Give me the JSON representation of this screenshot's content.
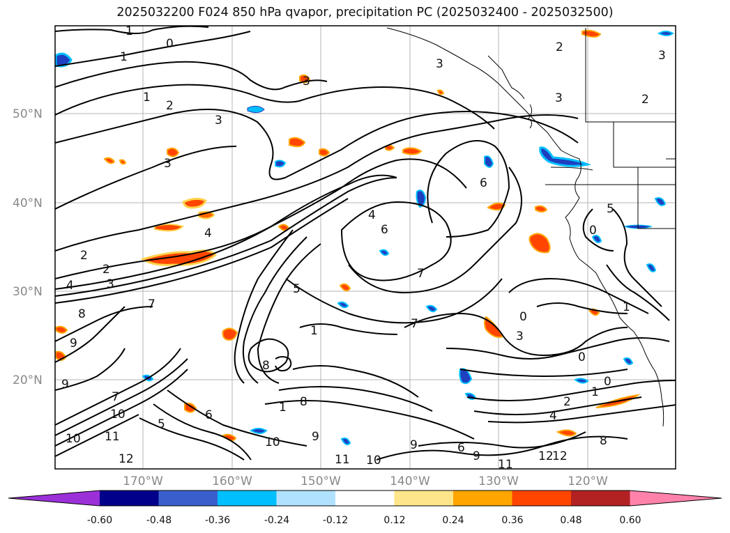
{
  "title": "2025032200 F024 850 hPa qvapor, precipitation PC (2025032400 - 2025032500)",
  "map": {
    "lat_labels": [
      "50°N",
      "40°N",
      "30°N",
      "20°N"
    ],
    "lon_labels": [
      "170°W",
      "160°W",
      "150°W",
      "140°W",
      "130°W",
      "120°W"
    ],
    "contour_labels": [
      "1",
      "1",
      "1",
      "0",
      "2",
      "3",
      "3",
      "3",
      "3",
      "2",
      "3",
      "2",
      "2",
      "3",
      "2",
      "3",
      "4",
      "4",
      "7",
      "7",
      "5",
      "6",
      "4",
      "5",
      "6",
      "7",
      "0",
      "0",
      "1",
      "0",
      "1",
      "0",
      "2",
      "4",
      "3",
      "8",
      "9",
      "9",
      "10",
      "11",
      "12",
      "9",
      "10",
      "6",
      "9",
      "11",
      "10",
      "12",
      "5",
      "1",
      "8",
      "6",
      "7",
      "8",
      "9",
      "10",
      "11",
      "12",
      "1",
      "8"
    ]
  },
  "colorbar": {
    "levels": [
      "-0.60",
      "-0.48",
      "-0.36",
      "-0.24",
      "-0.12",
      "0.12",
      "0.24",
      "0.36",
      "0.48",
      "0.60"
    ],
    "colors": [
      "#9b30d8",
      "#00008b",
      "#3a5fcd",
      "#00bfff",
      "#b0e2ff",
      "#ffffff",
      "#ffe58a",
      "#ffa500",
      "#ff4500",
      "#b22222",
      "#ff82ab"
    ]
  }
}
